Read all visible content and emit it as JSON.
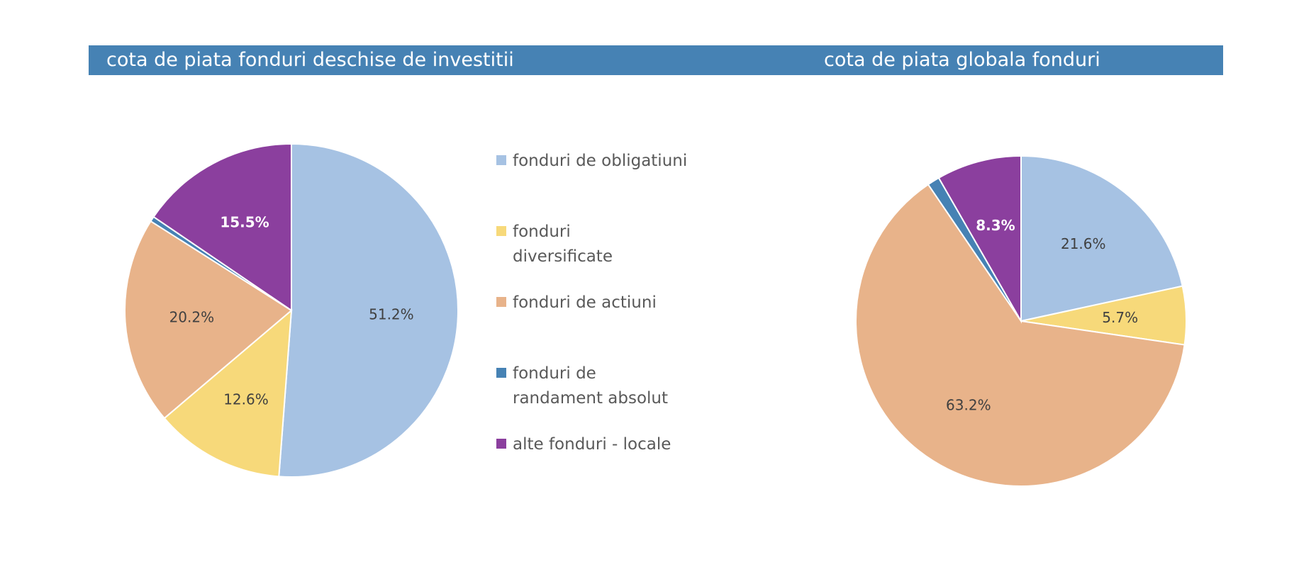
{
  "titles": {
    "left": "cota de piata fonduri deschise de investitii",
    "right": "cota de piata globala fonduri"
  },
  "colors": {
    "header_bar": "#4682b4",
    "obligatiuni": "#a6c2e3",
    "diversificate": "#f7d97a",
    "actiuni": "#e8b38a",
    "randament_absolut": "#4682b4",
    "alte": "#8b3f9e"
  },
  "legend": [
    {
      "label": "fonduri de obligatiuni",
      "color": "#a6c2e3"
    },
    {
      "label": "fonduri diversificate",
      "color": "#f7d97a"
    },
    {
      "label": "fonduri de actiuni",
      "color": "#e8b38a"
    },
    {
      "label": "fonduri de randament absolut",
      "color": "#4682b4"
    },
    {
      "label": "alte fonduri - locale",
      "color": "#8b3f9e"
    }
  ],
  "chart_data": [
    {
      "type": "pie",
      "title": "cota de piata fonduri deschise de investitii",
      "legend_position": "right",
      "slices": [
        {
          "name": "fonduri de obligatiuni",
          "value": 51.2,
          "label": "51.2%",
          "color": "#a6c2e3",
          "label_color": "#404040"
        },
        {
          "name": "fonduri diversificate",
          "value": 12.6,
          "label": "12.6%",
          "color": "#f7d97a",
          "label_color": "#404040"
        },
        {
          "name": "fonduri de actiuni",
          "value": 20.2,
          "label": "20.2%",
          "color": "#e8b38a",
          "label_color": "#404040"
        },
        {
          "name": "fonduri de randament absolut",
          "value": 0.5,
          "label": "",
          "color": "#4682b4",
          "label_color": "#404040"
        },
        {
          "name": "alte fonduri - locale",
          "value": 15.5,
          "label": "15.5%",
          "color": "#8b3f9e",
          "label_color": "#ffffff"
        }
      ]
    },
    {
      "type": "pie",
      "title": "cota de piata globala fonduri",
      "slices": [
        {
          "name": "fonduri de obligatiuni",
          "value": 21.6,
          "label": "21.6%",
          "color": "#a6c2e3",
          "label_color": "#404040"
        },
        {
          "name": "fonduri diversificate",
          "value": 5.7,
          "label": "5.7%",
          "color": "#f7d97a",
          "label_color": "#404040"
        },
        {
          "name": "fonduri de actiuni",
          "value": 63.2,
          "label": "63.2%",
          "color": "#e8b38a",
          "label_color": "#404040"
        },
        {
          "name": "fonduri de randament absolut",
          "value": 1.2,
          "label": "",
          "color": "#4682b4",
          "label_color": "#404040"
        },
        {
          "name": "alte fonduri - locale",
          "value": 8.3,
          "label": "8.3%",
          "color": "#8b3f9e",
          "label_color": "#ffffff"
        }
      ]
    }
  ]
}
